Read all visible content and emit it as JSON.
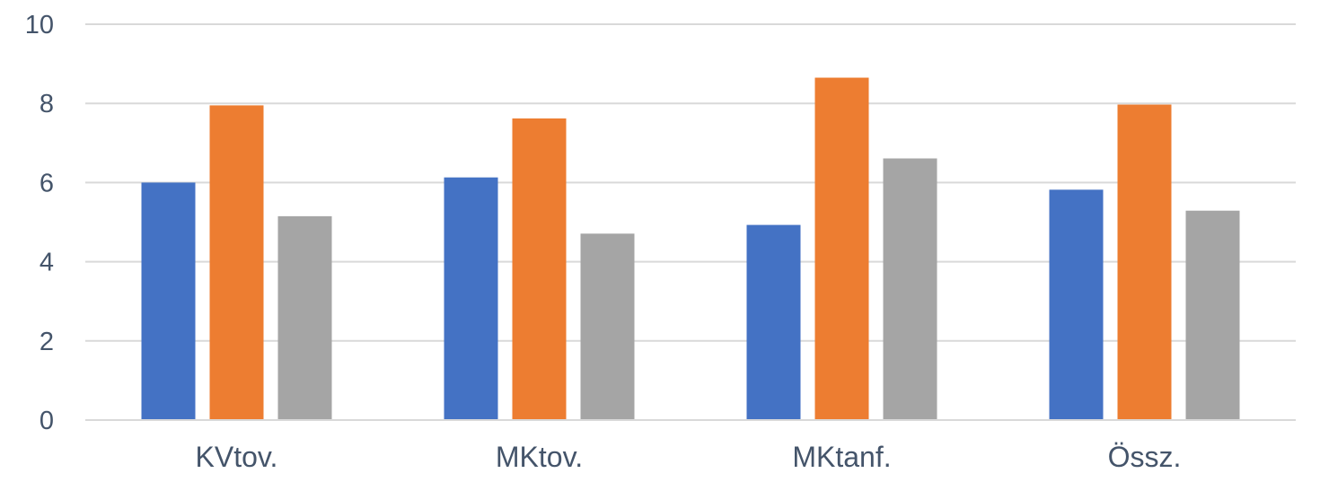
{
  "chart_data": {
    "type": "bar",
    "categories": [
      "KVtov.",
      "MKtov.",
      "MKtanf.",
      "Össz."
    ],
    "series": [
      {
        "color": "#4472c4",
        "values": [
          6.0,
          6.13,
          4.93,
          5.82
        ]
      },
      {
        "color": "#ed7d31",
        "values": [
          7.95,
          7.62,
          8.65,
          7.97
        ]
      },
      {
        "color": "#a5a5a5",
        "values": [
          5.15,
          4.71,
          6.61,
          5.29
        ]
      }
    ],
    "ylim": [
      0,
      10
    ],
    "yticks": [
      "0",
      "2",
      "4",
      "6",
      "8",
      "10"
    ],
    "grid": true,
    "legend": "none",
    "title": "",
    "xlabel": "",
    "ylabel": ""
  }
}
